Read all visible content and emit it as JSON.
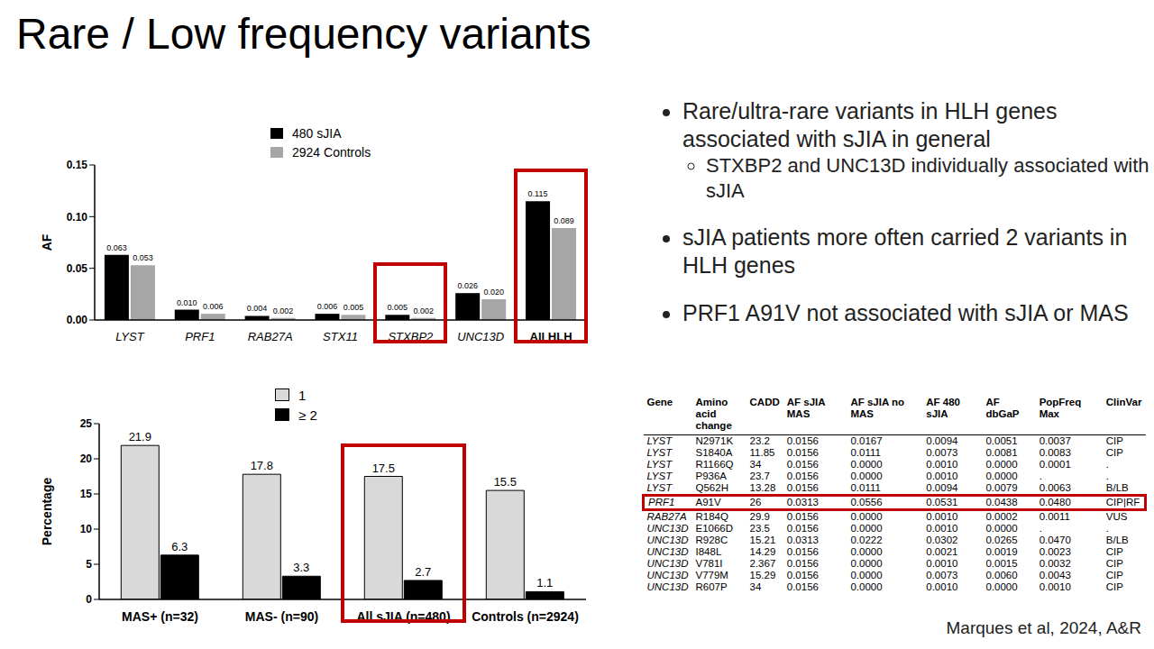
{
  "title": "Rare / Low frequency variants",
  "chart_data": [
    {
      "type": "bar",
      "y_label": "AF",
      "categories": [
        "LYST",
        "PRF1",
        "RAB27A",
        "STX11",
        "STXBP2",
        "UNC13D",
        "All HLH"
      ],
      "series": [
        {
          "name": "480 sJIA",
          "color": "#000000",
          "values": [
            0.063,
            0.01,
            0.004,
            0.006,
            0.005,
            0.026,
            0.115
          ],
          "value_labels": [
            "0.063",
            "0.010",
            "0.004",
            "0.006",
            "0.005",
            "0.026",
            "0.115"
          ]
        },
        {
          "name": "2924 Controls",
          "color": "#a6a6a6",
          "values": [
            0.053,
            0.006,
            0.002,
            0.005,
            0.002,
            0.02,
            0.089
          ],
          "value_labels": [
            "0.053",
            "0.006",
            "0.002",
            "0.005",
            "0.002",
            "0.020",
            "0.089"
          ]
        }
      ],
      "ylim": [
        0,
        0.15
      ],
      "yticks": [
        {
          "value": 0,
          "label": "0.00"
        },
        0.05,
        {
          "value": 0.1,
          "label": "0.10"
        },
        0.15
      ],
      "data_labels": true,
      "legend": "top",
      "grid": false
    },
    {
      "type": "bar",
      "y_label": "Percentage",
      "categories": [
        "MAS+ (n=32)",
        "MAS- (n=90)",
        "All sJIA (n=480)",
        "Controls (n=2924)"
      ],
      "series": [
        {
          "name": "1",
          "color": "#d9d9d9",
          "values": [
            21.9,
            17.8,
            17.5,
            15.5
          ]
        },
        {
          "name": "≥ 2",
          "color": "#000000",
          "values": [
            6.3,
            3.3,
            2.7,
            1.1
          ]
        }
      ],
      "ylim": [
        0,
        25
      ],
      "yticks": [
        0,
        5,
        10,
        15,
        20,
        25
      ],
      "data_labels": true,
      "legend": "top",
      "grid": false
    }
  ],
  "bullets": [
    {
      "text": "Rare/ultra-rare variants in HLH genes associated with sJIA in general",
      "sub": [
        "STXBP2 and UNC13D individually associated with sJIA"
      ]
    },
    {
      "text": "sJIA patients more often carried 2 variants in HLH genes"
    },
    {
      "text": "PRF1 A91V not associated with sJIA or MAS"
    }
  ],
  "table": {
    "columns": [
      "Gene",
      "Amino acid change",
      "CADD",
      "AF sJIA MAS",
      "AF sJIA no MAS",
      "AF 480 sJIA",
      "AF dbGaP",
      "PopFreq Max",
      "ClinVar"
    ],
    "rows": [
      [
        "LYST",
        "N2971K",
        "23.2",
        "0.0156",
        "0.0167",
        "0.0094",
        "0.0051",
        "0.0037",
        "CIP"
      ],
      [
        "LYST",
        "S1840A",
        "11.85",
        "0.0156",
        "0.0111",
        "0.0073",
        "0.0081",
        "0.0083",
        "CIP"
      ],
      [
        "LYST",
        "R1166Q",
        "34",
        "0.0156",
        "0.0000",
        "0.0010",
        "0.0000",
        "0.0001",
        "."
      ],
      [
        "LYST",
        "P936A",
        "23.7",
        "0.0156",
        "0.0000",
        "0.0010",
        "0.0000",
        ".",
        "."
      ],
      [
        "LYST",
        "Q562H",
        "13.28",
        "0.0156",
        "0.0111",
        "0.0094",
        "0.0079",
        "0.0063",
        "B/LB"
      ],
      [
        "PRF1",
        "A91V",
        "26",
        "0.0313",
        "0.0556",
        "0.0531",
        "0.0438",
        "0.0480",
        "CIP|RF"
      ],
      [
        "RAB27A",
        "R184Q",
        "29.9",
        "0.0156",
        "0.0000",
        "0.0010",
        "0.0002",
        "0.0011",
        "VUS"
      ],
      [
        "UNC13D",
        "E1066D",
        "23.5",
        "0.0156",
        "0.0000",
        "0.0010",
        "0.0000",
        ".",
        "."
      ],
      [
        "UNC13D",
        "R928C",
        "15.21",
        "0.0313",
        "0.0222",
        "0.0302",
        "0.0265",
        "0.0470",
        "B/LB"
      ],
      [
        "UNC13D",
        "I848L",
        "14.29",
        "0.0156",
        "0.0000",
        "0.0021",
        "0.0019",
        "0.0023",
        "CIP"
      ],
      [
        "UNC13D",
        "V781I",
        "2.367",
        "0.0156",
        "0.0000",
        "0.0010",
        "0.0015",
        "0.0032",
        "CIP"
      ],
      [
        "UNC13D",
        "V779M",
        "15.29",
        "0.0156",
        "0.0000",
        "0.0073",
        "0.0060",
        "0.0043",
        "CIP"
      ],
      [
        "UNC13D",
        "R607P",
        "34",
        "0.0156",
        "0.0000",
        "0.0010",
        "0.0000",
        "0.0010",
        "CIP"
      ]
    ]
  },
  "citation": "Marques et al, 2024, A&R"
}
